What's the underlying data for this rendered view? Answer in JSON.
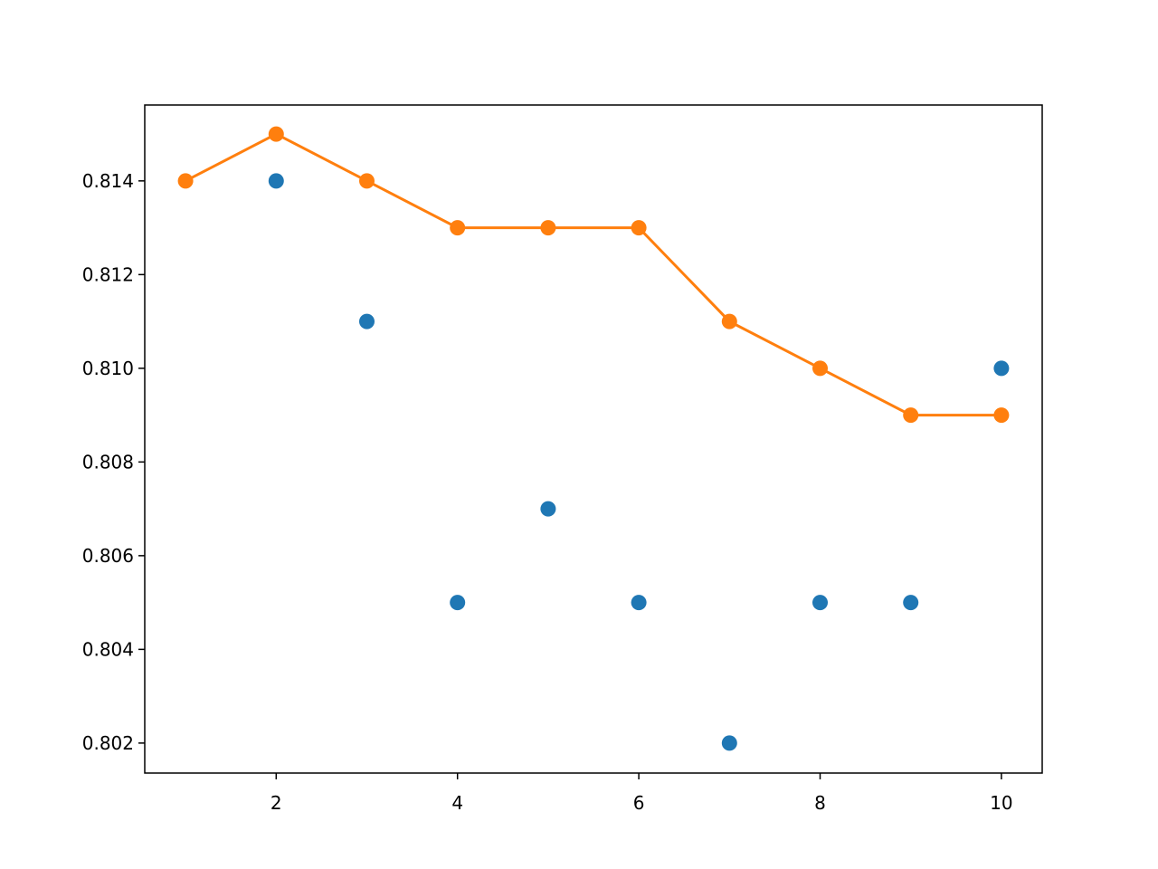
{
  "chart_data": {
    "type": "scatter",
    "series": [
      {
        "color": "#1f77b4",
        "line": false,
        "x": [
          2,
          3,
          4,
          5,
          6,
          7,
          8,
          9,
          10
        ],
        "values": [
          0.814,
          0.811,
          0.805,
          0.807,
          0.805,
          0.802,
          0.805,
          0.805,
          0.81
        ]
      },
      {
        "color": "#ff7f0e",
        "line": true,
        "x": [
          1,
          2,
          3,
          4,
          5,
          6,
          7,
          8,
          9,
          10
        ],
        "values": [
          0.814,
          0.815,
          0.814,
          0.813,
          0.813,
          0.813,
          0.811,
          0.81,
          0.809,
          0.809
        ]
      }
    ],
    "xlim": [
      0.55,
      10.45
    ],
    "xticks": [
      2,
      4,
      6,
      8,
      10
    ],
    "ylim": [
      0.80136,
      0.81562
    ],
    "yticks": [
      0.802,
      0.804,
      0.806,
      0.808,
      {
        "value": 0.81,
        "label": "0.810"
      },
      0.812,
      0.814
    ],
    "grid": false
  }
}
